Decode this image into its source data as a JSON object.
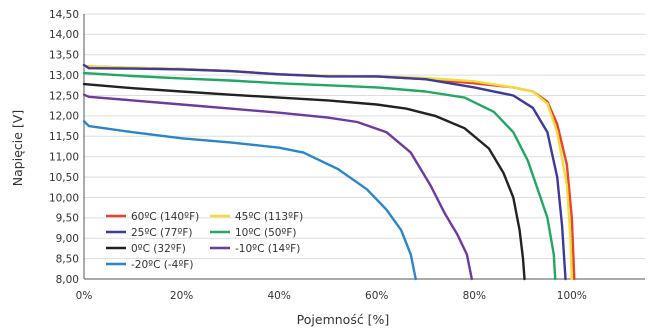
{
  "chart_data": {
    "type": "line",
    "title": "",
    "xlabel": "Pojemność [%]",
    "ylabel": "Napięcie [V]",
    "xlim": [
      0,
      115
    ],
    "ylim": [
      8.0,
      14.5
    ],
    "x_ticks": [
      "0%",
      "20%",
      "40%",
      "60%",
      "80%",
      "100%"
    ],
    "y_ticks": [
      "14,50",
      "14,00",
      "13,50",
      "13,00",
      "12,50",
      "12,00",
      "11,50",
      "11,00",
      "10,50",
      "10,00",
      "9,50",
      "9,00",
      "8,50",
      "8,00"
    ],
    "grid": "horizontal",
    "legend_position": "bottom-left",
    "series": [
      {
        "name": "60ºC (140ºF)",
        "color": "#e8412c",
        "points": [
          [
            0,
            13.22
          ],
          [
            10,
            13.18
          ],
          [
            20,
            13.15
          ],
          [
            30,
            13.1
          ],
          [
            40,
            13.02
          ],
          [
            50,
            12.98
          ],
          [
            60,
            12.97
          ],
          [
            70,
            12.9
          ],
          [
            80,
            12.8
          ],
          [
            88,
            12.7
          ],
          [
            92,
            12.6
          ],
          [
            95,
            12.35
          ],
          [
            97,
            11.8
          ],
          [
            99,
            10.8
          ],
          [
            100,
            9.5
          ],
          [
            100.5,
            8.0
          ]
        ]
      },
      {
        "name": "45ºC (113ºF)",
        "color": "#f3dc3a",
        "points": [
          [
            0,
            13.22
          ],
          [
            10,
            13.18
          ],
          [
            20,
            13.15
          ],
          [
            30,
            13.1
          ],
          [
            40,
            13.02
          ],
          [
            50,
            12.98
          ],
          [
            60,
            12.97
          ],
          [
            70,
            12.93
          ],
          [
            80,
            12.85
          ],
          [
            88,
            12.7
          ],
          [
            92,
            12.6
          ],
          [
            95,
            12.3
          ],
          [
            97,
            11.6
          ],
          [
            99,
            10.3
          ],
          [
            99.7,
            9.0
          ],
          [
            100,
            8.0
          ]
        ]
      },
      {
        "name": "25ºC (77ºF)",
        "color": "#3c3a9a",
        "points": [
          [
            0,
            13.25
          ],
          [
            1,
            13.17
          ],
          [
            10,
            13.16
          ],
          [
            20,
            13.14
          ],
          [
            30,
            13.1
          ],
          [
            40,
            13.02
          ],
          [
            50,
            12.97
          ],
          [
            60,
            12.97
          ],
          [
            70,
            12.9
          ],
          [
            80,
            12.7
          ],
          [
            88,
            12.5
          ],
          [
            92,
            12.2
          ],
          [
            95,
            11.6
          ],
          [
            97,
            10.5
          ],
          [
            98,
            9.3
          ],
          [
            98.7,
            8.0
          ]
        ]
      },
      {
        "name": "10ºC (50ºF)",
        "color": "#22a862",
        "points": [
          [
            0,
            13.05
          ],
          [
            10,
            12.98
          ],
          [
            20,
            12.92
          ],
          [
            30,
            12.87
          ],
          [
            40,
            12.8
          ],
          [
            50,
            12.75
          ],
          [
            60,
            12.7
          ],
          [
            70,
            12.6
          ],
          [
            78,
            12.45
          ],
          [
            84,
            12.1
          ],
          [
            88,
            11.6
          ],
          [
            91,
            10.9
          ],
          [
            93,
            10.2
          ],
          [
            95,
            9.5
          ],
          [
            96.3,
            8.6
          ],
          [
            96.6,
            8.0
          ]
        ]
      },
      {
        "name": "0ºC (32ºF)",
        "color": "#222222",
        "points": [
          [
            0,
            12.78
          ],
          [
            10,
            12.68
          ],
          [
            20,
            12.6
          ],
          [
            30,
            12.52
          ],
          [
            40,
            12.45
          ],
          [
            50,
            12.38
          ],
          [
            60,
            12.28
          ],
          [
            66,
            12.18
          ],
          [
            72,
            12.0
          ],
          [
            78,
            11.7
          ],
          [
            83,
            11.2
          ],
          [
            86,
            10.6
          ],
          [
            88,
            10.0
          ],
          [
            89.3,
            9.2
          ],
          [
            90,
            8.5
          ],
          [
            90.3,
            8.0
          ]
        ]
      },
      {
        "name": "-10ºC (14ºF)",
        "color": "#6e3a9e",
        "points": [
          [
            0,
            12.52
          ],
          [
            1,
            12.47
          ],
          [
            10,
            12.38
          ],
          [
            20,
            12.28
          ],
          [
            30,
            12.18
          ],
          [
            40,
            12.08
          ],
          [
            50,
            11.96
          ],
          [
            56,
            11.85
          ],
          [
            62,
            11.6
          ],
          [
            67,
            11.1
          ],
          [
            71,
            10.3
          ],
          [
            74,
            9.6
          ],
          [
            76.5,
            9.1
          ],
          [
            78.5,
            8.6
          ],
          [
            79.5,
            8.0
          ]
        ]
      },
      {
        "name": "-20ºC (-4ºF)",
        "color": "#2b85c8",
        "points": [
          [
            0,
            11.87
          ],
          [
            1,
            11.75
          ],
          [
            10,
            11.6
          ],
          [
            20,
            11.45
          ],
          [
            30,
            11.35
          ],
          [
            40,
            11.22
          ],
          [
            45,
            11.1
          ],
          [
            52,
            10.7
          ],
          [
            58,
            10.2
          ],
          [
            62,
            9.7
          ],
          [
            65,
            9.2
          ],
          [
            67,
            8.6
          ],
          [
            68,
            8.0
          ]
        ]
      }
    ]
  }
}
